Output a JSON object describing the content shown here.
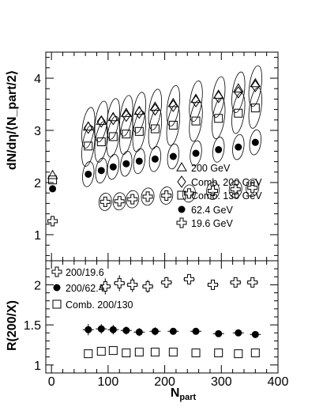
{
  "chart_data": [
    {
      "type": "scatter",
      "panel": "top",
      "ylabel": "dN/dη/⟨N_part/2⟩",
      "xlabel": "",
      "xlim": [
        -10,
        400
      ],
      "ylim": [
        0.5,
        4.5
      ],
      "y_ticks": [
        1,
        2,
        3,
        4
      ],
      "x_ticks": [
        0,
        100,
        200,
        300,
        400
      ],
      "legend_position": "bottom-right",
      "series": [
        {
          "name": "200 GeV",
          "marker": "triangle-open",
          "x": [
            2,
            65,
            88,
            109,
            132,
            155,
            183,
            215,
            255,
            295,
            330,
            360
          ],
          "y": [
            2.14,
            3.07,
            3.18,
            3.25,
            3.33,
            3.37,
            3.45,
            3.52,
            3.6,
            3.68,
            3.8,
            3.9
          ]
        },
        {
          "name": "Comb. 200 GeV",
          "marker": "diamond-open",
          "x": [
            65,
            88,
            109,
            132,
            155,
            183,
            215,
            255,
            295,
            330,
            360
          ],
          "y": [
            3.05,
            3.17,
            3.22,
            3.28,
            3.34,
            3.4,
            3.47,
            3.56,
            3.64,
            3.73,
            3.85
          ]
        },
        {
          "name": "Comb. 130 GeV",
          "marker": "square-open",
          "x": [
            2,
            65,
            88,
            109,
            132,
            155,
            183,
            215,
            255,
            295,
            330,
            360
          ],
          "y": [
            2.05,
            2.7,
            2.78,
            2.88,
            2.93,
            2.98,
            3.03,
            3.1,
            3.18,
            3.23,
            3.33,
            3.43
          ]
        },
        {
          "name": "62.4 GeV",
          "marker": "circle-filled",
          "x": [
            2,
            65,
            88,
            109,
            132,
            155,
            183,
            215,
            255,
            295,
            330,
            360
          ],
          "y": [
            1.88,
            2.16,
            2.23,
            2.3,
            2.36,
            2.41,
            2.45,
            2.5,
            2.56,
            2.63,
            2.68,
            2.77
          ]
        },
        {
          "name": "19.6 GeV",
          "marker": "cross-open",
          "x": [
            2,
            95,
            120,
            143,
            170,
            203,
            243,
            285,
            325,
            355
          ],
          "y": [
            1.26,
            1.63,
            1.64,
            1.68,
            1.73,
            1.75,
            1.79,
            1.84,
            1.87,
            1.9
          ]
        }
      ]
    },
    {
      "type": "scatter",
      "panel": "bottom",
      "ylabel": "R(200/X)",
      "xlabel": "N_part",
      "xlim": [
        -10,
        400
      ],
      "ylim": [
        0.9,
        2.3
      ],
      "y_ticks": [
        1,
        1.5,
        2
      ],
      "x_ticks": [
        0,
        100,
        200,
        300,
        400
      ],
      "legend_position": "top-left",
      "series": [
        {
          "name": "200/19.6",
          "marker": "cross-open",
          "x": [
            95,
            120,
            143,
            170,
            203,
            243,
            285,
            325,
            355
          ],
          "y": [
            1.98,
            2.02,
            2.0,
            1.98,
            2.03,
            2.07,
            2.0,
            2.03,
            2.03
          ],
          "err": [
            0.1,
            0.1,
            0.09,
            0.08,
            0.07,
            0.06,
            0.05,
            0.05,
            0.05
          ]
        },
        {
          "name": "200/62.4",
          "marker": "circle-filled",
          "x": [
            65,
            88,
            109,
            132,
            155,
            183,
            215,
            255,
            295,
            330,
            360
          ],
          "y": [
            1.44,
            1.45,
            1.44,
            1.43,
            1.41,
            1.42,
            1.42,
            1.42,
            1.39,
            1.4,
            1.38
          ],
          "err": [
            0.07,
            0.06,
            0.06,
            0.05,
            0.05,
            0.05,
            0.04,
            0.04,
            0.03,
            0.03,
            0.03
          ]
        },
        {
          "name": "Comb. 200/130",
          "marker": "square-open",
          "x": [
            65,
            88,
            109,
            132,
            155,
            183,
            215,
            255,
            295,
            330,
            360
          ],
          "y": [
            1.14,
            1.17,
            1.18,
            1.15,
            1.16,
            1.16,
            1.16,
            1.15,
            1.15,
            1.14,
            1.15
          ]
        }
      ]
    }
  ]
}
